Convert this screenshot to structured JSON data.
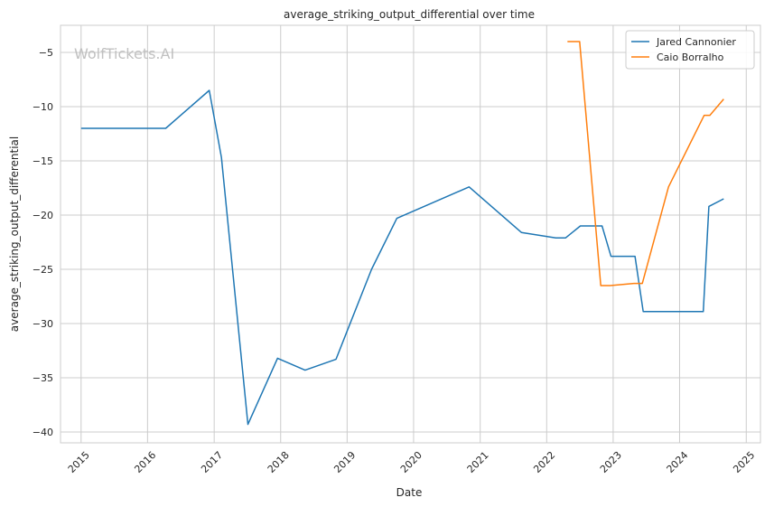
{
  "chart_data": {
    "type": "line",
    "title": "average_striking_output_differential over time",
    "xlabel": "Date",
    "ylabel": "average_striking_output_differential",
    "watermark": "WolfTickets.AI",
    "x_ticks": [
      "2015",
      "2016",
      "2017",
      "2018",
      "2019",
      "2020",
      "2021",
      "2022",
      "2023",
      "2024",
      "2025"
    ],
    "x_range": [
      "2014-09-10",
      "2025-03-20"
    ],
    "y_ticks": [
      -5,
      -10,
      -15,
      -20,
      -25,
      -30,
      -35,
      -40
    ],
    "ylim": [
      -41,
      -2.5
    ],
    "grid": true,
    "legend_position": "top-right",
    "series": [
      {
        "name": "Jared Cannonier",
        "color": "#1f77b4",
        "points": [
          [
            "2015-01-01",
            -12.0
          ],
          [
            "2016-04-10",
            -12.0
          ],
          [
            "2016-12-05",
            -8.5
          ],
          [
            "2017-02-10",
            -14.7
          ],
          [
            "2017-07-05",
            -39.3
          ],
          [
            "2017-12-15",
            -33.2
          ],
          [
            "2018-05-15",
            -34.3
          ],
          [
            "2018-11-01",
            -33.3
          ],
          [
            "2019-05-15",
            -25.0
          ],
          [
            "2019-10-01",
            -20.3
          ],
          [
            "2020-11-01",
            -17.4
          ],
          [
            "2021-08-15",
            -21.6
          ],
          [
            "2022-02-20",
            -22.1
          ],
          [
            "2022-04-15",
            -22.1
          ],
          [
            "2022-07-05",
            -21.0
          ],
          [
            "2022-11-01",
            -21.0
          ],
          [
            "2022-12-20",
            -23.8
          ],
          [
            "2023-05-01",
            -23.8
          ],
          [
            "2023-06-15",
            -28.9
          ],
          [
            "2024-05-10",
            -28.9
          ],
          [
            "2024-06-10",
            -19.2
          ],
          [
            "2024-08-30",
            -18.5
          ]
        ]
      },
      {
        "name": "Caio Borralho",
        "color": "#ff7f0e",
        "points": [
          [
            "2022-04-25",
            -4.0
          ],
          [
            "2022-07-01",
            -4.0
          ],
          [
            "2022-10-25",
            -26.5
          ],
          [
            "2022-12-15",
            -26.5
          ],
          [
            "2023-04-25",
            -26.3
          ],
          [
            "2023-06-10",
            -26.3
          ],
          [
            "2023-11-01",
            -17.4
          ],
          [
            "2024-05-15",
            -10.8
          ],
          [
            "2024-06-15",
            -10.8
          ],
          [
            "2024-08-30",
            -9.3
          ]
        ]
      }
    ]
  }
}
